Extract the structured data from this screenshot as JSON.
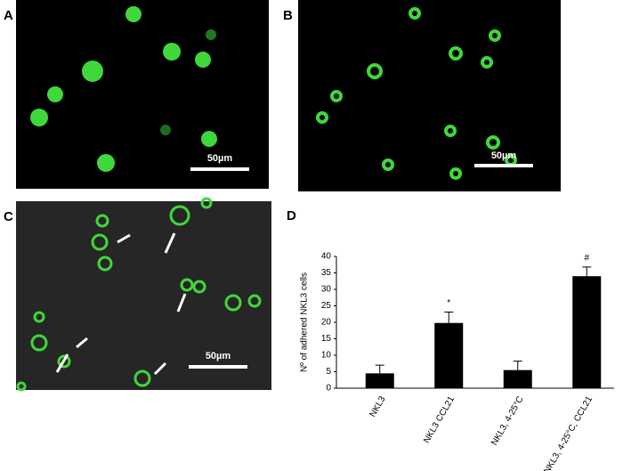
{
  "panels": [
    {
      "label": "A",
      "scale_bar": "50µm"
    },
    {
      "label": "B",
      "scale_bar": "50µm"
    },
    {
      "label": "C",
      "scale_bar": "50µm"
    },
    {
      "label": "D"
    }
  ],
  "chart_data": {
    "type": "bar",
    "ylabel": "Nº of adhered NKL3 cells",
    "categories": [
      "NKL3",
      "NKL3 CCL21",
      "NKL3, 4-25°C",
      "NKL3, 4-25°C, CCL21"
    ],
    "values": [
      4.5,
      19.8,
      5.5,
      34
    ],
    "errors": [
      2.5,
      3.3,
      2.7,
      2.8
    ],
    "annotations": [
      null,
      "*",
      null,
      "#"
    ],
    "color": "#000000",
    "ylim": [
      0,
      40
    ],
    "yticks": [
      0,
      5,
      10,
      15,
      20,
      25,
      30,
      35,
      40
    ]
  }
}
